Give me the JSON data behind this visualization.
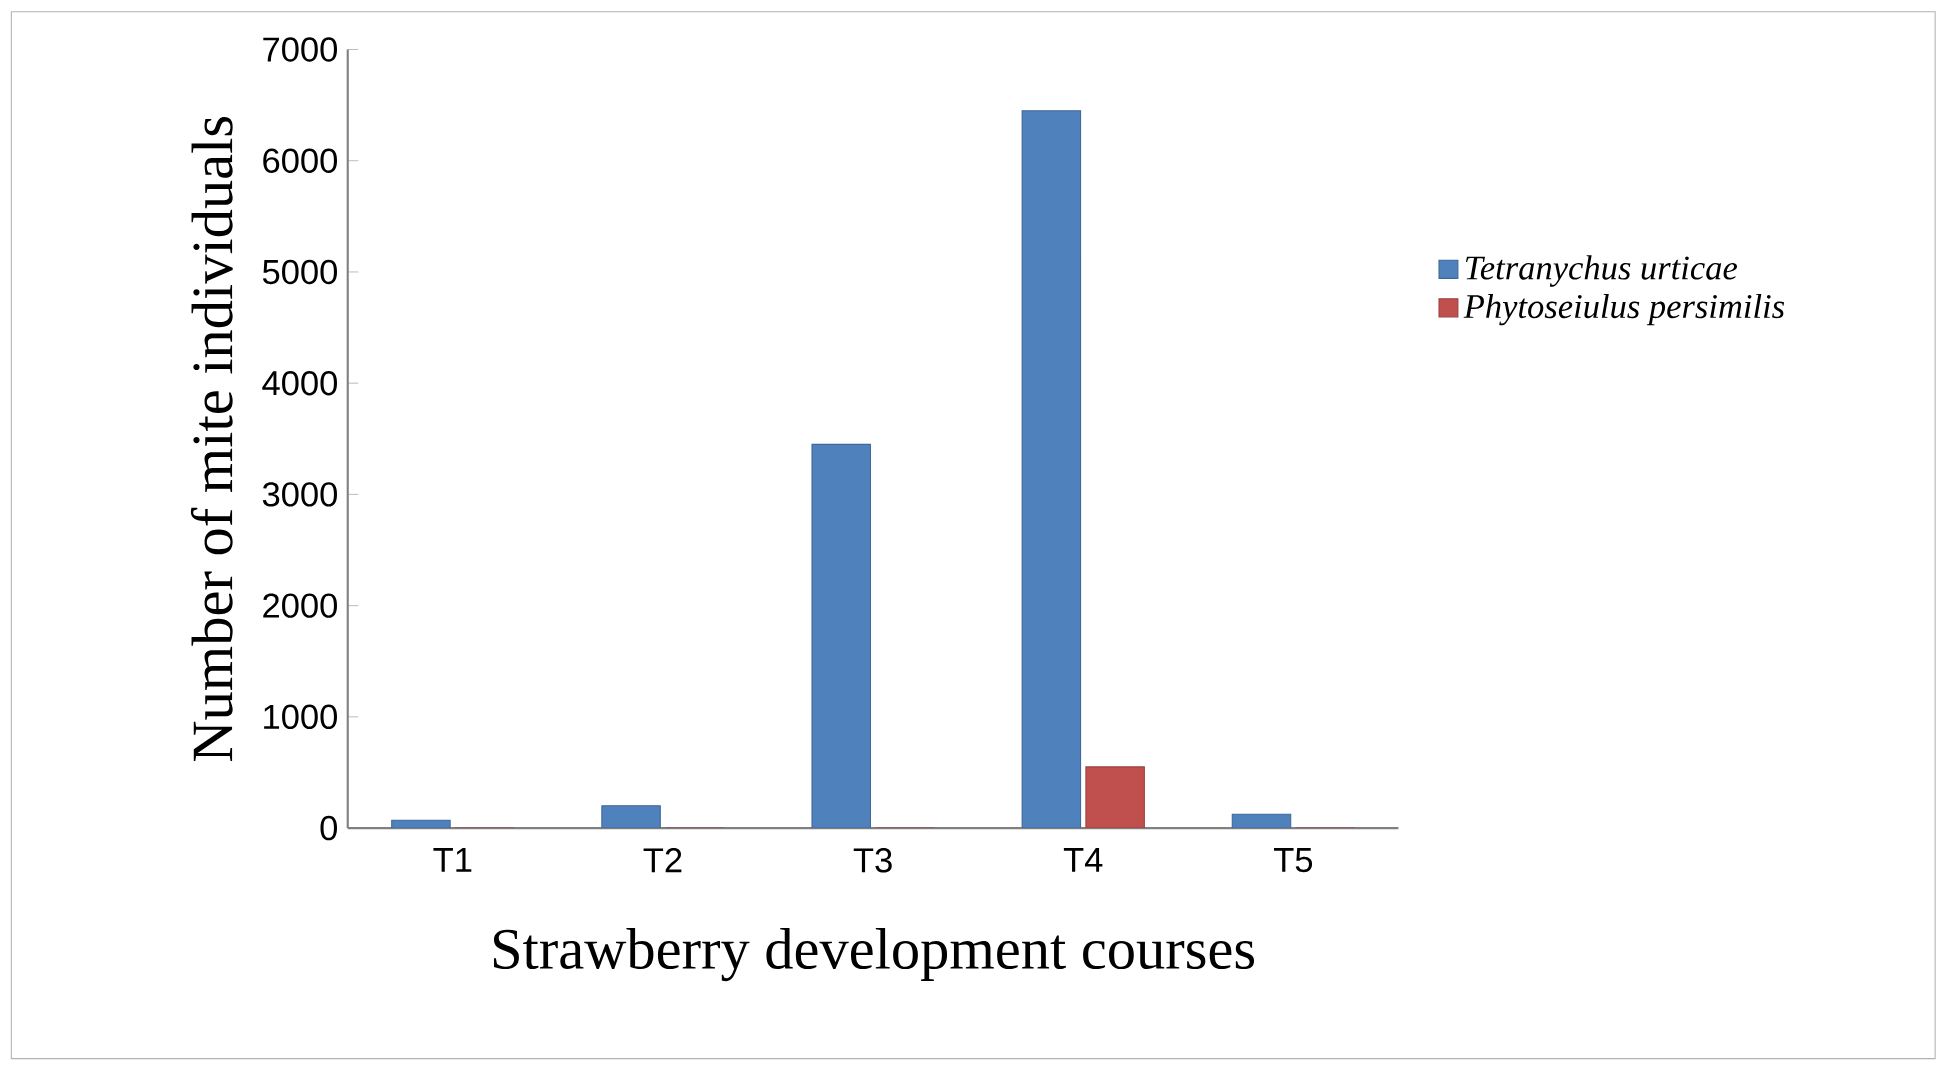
{
  "chart_data": {
    "type": "bar",
    "xlabel": "Strawberry development courses",
    "ylabel": "Number of mite individuals",
    "categories": [
      "T1",
      "T2",
      "T3",
      "T4",
      "T5"
    ],
    "series": [
      {
        "name": "Tetranychus urticae",
        "color": "#4f81bd",
        "values": [
          70,
          200,
          3450,
          6450,
          125
        ]
      },
      {
        "name": "Phytoseiulus persimilis",
        "color": "#c0504d",
        "values": [
          0,
          0,
          0,
          550,
          0
        ]
      }
    ],
    "ylim": [
      0,
      7000
    ],
    "yticks": [
      0,
      1000,
      2000,
      3000,
      4000,
      5000,
      6000,
      7000
    ],
    "legend": "right",
    "grid": false
  }
}
